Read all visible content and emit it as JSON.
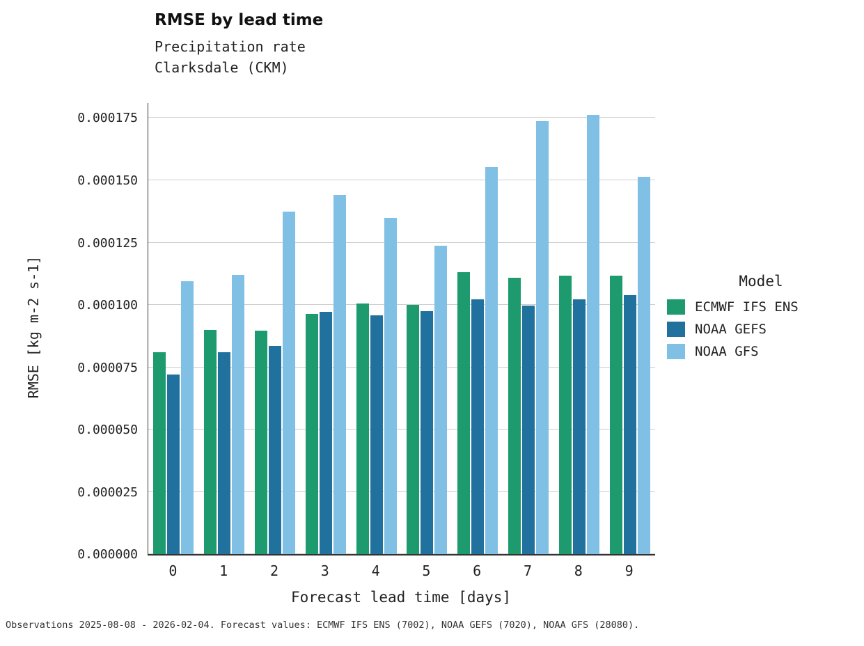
{
  "title": "RMSE by lead time",
  "subtitle": "Precipitation rate\nClarksdale (CKM)",
  "xlabel": "Forecast lead time [days]",
  "ylabel": "RMSE [kg m-2 s-1]",
  "footer": "Observations 2025-08-08 - 2026-02-04. Forecast values: ECMWF IFS ENS (7002), NOAA GEFS (7020), NOAA GFS (28080).",
  "legend": {
    "title": "Model",
    "entries": [
      {
        "label": "ECMWF IFS ENS",
        "color": "#1d9a6e"
      },
      {
        "label": "NOAA GEFS",
        "color": "#20719e"
      },
      {
        "label": "NOAA GFS",
        "color": "#7fc0e4"
      }
    ]
  },
  "chart_data": {
    "type": "bar",
    "title": "RMSE by lead time",
    "subtitle": [
      "Precipitation rate",
      "Clarksdale (CKM)"
    ],
    "xlabel": "Forecast lead time [days]",
    "ylabel": "RMSE [kg m-2 s-1]",
    "categories": [
      "0",
      "1",
      "2",
      "3",
      "4",
      "5",
      "6",
      "7",
      "8",
      "9"
    ],
    "series": [
      {
        "name": "ECMWF IFS ENS",
        "color": "#1d9a6e",
        "values": [
          8.1e-05,
          9e-05,
          8.98e-05,
          9.63e-05,
          0.0001005,
          0.0001,
          0.0001132,
          0.000111,
          0.0001117,
          0.0001118
        ]
      },
      {
        "name": "NOAA GEFS",
        "color": "#20719e",
        "values": [
          7.22e-05,
          8.1e-05,
          8.35e-05,
          9.72e-05,
          9.58e-05,
          9.74e-05,
          0.0001021,
          9.96e-05,
          0.0001022,
          0.000104
        ]
      },
      {
        "name": "NOAA GFS",
        "color": "#7fc0e4",
        "values": [
          0.0001095,
          0.000112,
          0.0001373,
          0.000144,
          0.0001348,
          0.0001237,
          0.0001553,
          0.0001737,
          0.0001763,
          0.0001513
        ]
      }
    ],
    "yticks": [
      0.0,
      2.5e-05,
      5e-05,
      7.5e-05,
      0.0001,
      0.000125,
      0.00015,
      0.000175
    ],
    "ytick_labels": [
      "0.000000",
      "0.000025",
      "0.000050",
      "0.000075",
      "0.000100",
      "0.000125",
      "0.000150",
      "0.000175"
    ],
    "ylim": [
      0,
      0.000181
    ],
    "grid": true,
    "legend_title": "Model",
    "legend_position": "right"
  }
}
